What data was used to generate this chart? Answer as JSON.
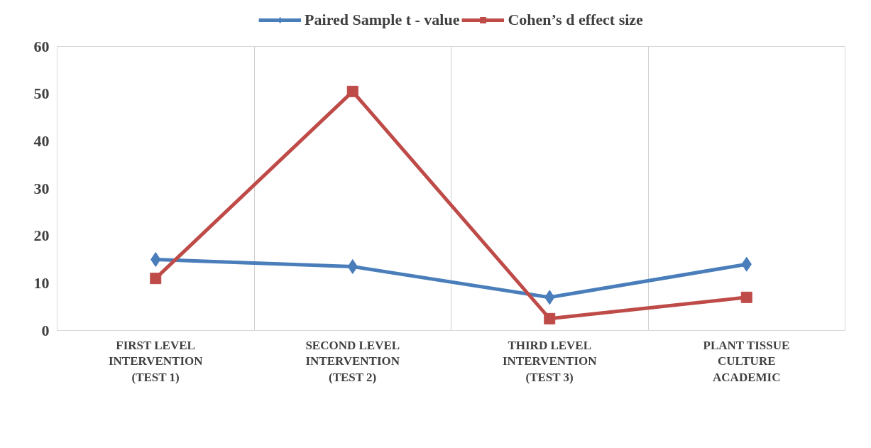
{
  "chart_data": {
    "type": "line",
    "categories": [
      "FIRST LEVEL\nINTERVENTION\n(TEST 1)",
      "SECOND LEVEL\nINTERVENTION\n(TEST 2)",
      "THIRD LEVEL\nINTERVENTION\n(TEST 3)",
      "PLANT TISSUE\nCULTURE\nACADEMIC"
    ],
    "series": [
      {
        "name": "Paired Sample t - value",
        "color": "#4a7ebb",
        "marker": "diamond",
        "values": [
          15,
          13.5,
          7,
          14
        ]
      },
      {
        "name": "Cohen’s d effect size",
        "color": "#be4b48",
        "marker": "square",
        "values": [
          11,
          50.5,
          2.5,
          7
        ]
      }
    ],
    "ylim": [
      0,
      60
    ],
    "yticks": [
      0,
      10,
      20,
      30,
      40,
      50,
      60
    ],
    "grid": "x",
    "legend": "top",
    "line_style": "solid"
  }
}
